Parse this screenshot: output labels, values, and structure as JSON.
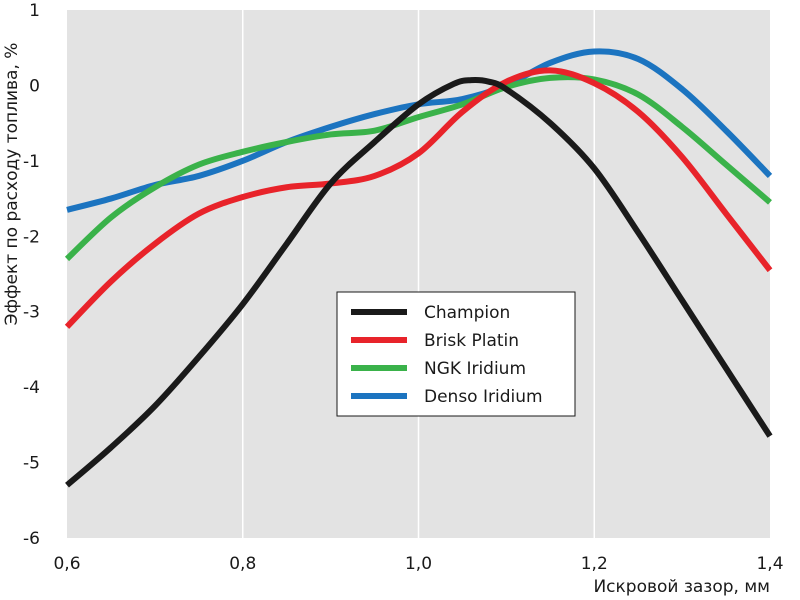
{
  "chart_data": {
    "type": "line",
    "title": "",
    "xlabel": "Искровой зазор, мм",
    "ylabel": "Эффект по расходу топлива, %",
    "xlim": [
      0.6,
      1.4
    ],
    "ylim": [
      -6,
      1
    ],
    "x_ticks": [
      0.6,
      0.8,
      1.0,
      1.2,
      1.4
    ],
    "x_tick_labels": [
      "0,6",
      "0,8",
      "1,0",
      "1,2",
      "1,4"
    ],
    "y_ticks": [
      1,
      0,
      -1,
      -2,
      -3,
      -4,
      -5,
      -6
    ],
    "y_tick_labels": [
      "1",
      "0",
      "-1",
      "-2",
      "-3",
      "-4",
      "-5",
      "-6"
    ],
    "grid": "vertical",
    "plot_background": "#e3e3e3",
    "legend_position": "center",
    "series": [
      {
        "name": "Champion",
        "color": "#1a1a1a",
        "x": [
          0.6,
          0.65,
          0.7,
          0.75,
          0.8,
          0.85,
          0.9,
          0.95,
          1.0,
          1.04,
          1.06,
          1.08,
          1.1,
          1.15,
          1.2,
          1.25,
          1.3,
          1.35,
          1.4
        ],
        "y": [
          -5.3,
          -4.8,
          -4.25,
          -3.6,
          -2.9,
          -2.1,
          -1.3,
          -0.75,
          -0.25,
          0.02,
          0.07,
          0.05,
          -0.05,
          -0.5,
          -1.1,
          -1.95,
          -2.85,
          -3.75,
          -4.65
        ]
      },
      {
        "name": "Brisk Platin",
        "color": "#e8232a",
        "x": [
          0.6,
          0.65,
          0.7,
          0.75,
          0.8,
          0.85,
          0.9,
          0.95,
          1.0,
          1.05,
          1.1,
          1.15,
          1.2,
          1.25,
          1.3,
          1.35,
          1.4
        ],
        "y": [
          -3.2,
          -2.6,
          -2.1,
          -1.7,
          -1.48,
          -1.35,
          -1.3,
          -1.2,
          -0.9,
          -0.35,
          0.05,
          0.2,
          0.03,
          -0.35,
          -0.95,
          -1.7,
          -2.45
        ]
      },
      {
        "name": "NGK Iridium",
        "color": "#3ab24a",
        "x": [
          0.6,
          0.65,
          0.7,
          0.75,
          0.8,
          0.85,
          0.9,
          0.95,
          1.0,
          1.05,
          1.1,
          1.15,
          1.2,
          1.25,
          1.3,
          1.35,
          1.4
        ],
        "y": [
          -2.3,
          -1.75,
          -1.35,
          -1.05,
          -0.88,
          -0.75,
          -0.65,
          -0.6,
          -0.42,
          -0.25,
          -0.02,
          0.1,
          0.08,
          -0.12,
          -0.55,
          -1.05,
          -1.55
        ]
      },
      {
        "name": "Denso Iridium",
        "color": "#1c74c0",
        "x": [
          0.6,
          0.65,
          0.7,
          0.75,
          0.8,
          0.85,
          0.9,
          0.95,
          1.0,
          1.05,
          1.1,
          1.15,
          1.2,
          1.25,
          1.3,
          1.35,
          1.4
        ],
        "y": [
          -1.65,
          -1.5,
          -1.32,
          -1.2,
          -1.0,
          -0.75,
          -0.55,
          -0.38,
          -0.25,
          -0.18,
          0.0,
          0.3,
          0.45,
          0.35,
          -0.05,
          -0.6,
          -1.2
        ]
      }
    ]
  }
}
